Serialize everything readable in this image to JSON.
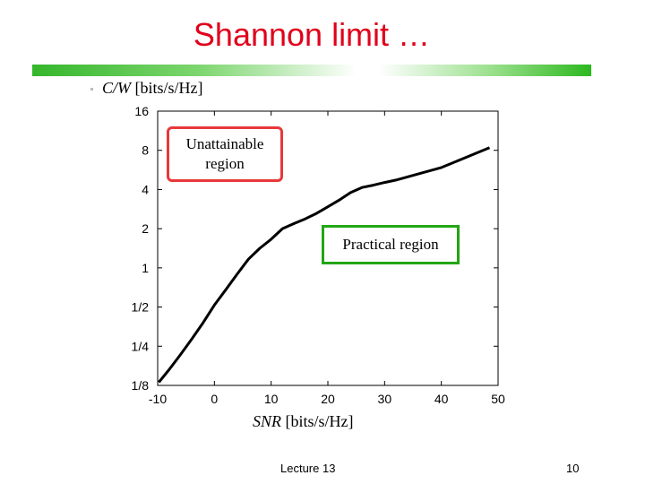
{
  "slide": {
    "title": "Shannon limit …",
    "footer": "Lecture 13",
    "page_number": "10"
  },
  "colors": {
    "title": "#e0001b",
    "unattainable_border": "#e8383a",
    "practical_border": "#22a614"
  },
  "chart_data": {
    "type": "line",
    "title": "",
    "ylabel_var": "C/W",
    "ylabel_unit": " [bits/s/Hz]",
    "xlabel_var": "SNR",
    "xlabel_unit": " [bits/s/Hz]",
    "x_ticks": [
      -10,
      0,
      10,
      20,
      30,
      40,
      50
    ],
    "x_tick_labels": [
      "-10",
      "0",
      "10",
      "20",
      "30",
      "40",
      "50"
    ],
    "y_ticks_log2": [
      -3,
      -2,
      -1,
      0,
      1,
      2,
      3,
      4
    ],
    "y_tick_labels": [
      "1/8",
      "1/4",
      "1/2",
      "1",
      "2",
      "4",
      "8",
      "16"
    ],
    "xlim": [
      -10,
      50
    ],
    "ylim_log2": [
      -3,
      4
    ],
    "series": [
      {
        "name": "Shannon limit",
        "x": [
          -9.8,
          -8,
          -6,
          -4,
          -2,
          0,
          2,
          4,
          6,
          8,
          10,
          12,
          14,
          16,
          18,
          20,
          22,
          24,
          26,
          28,
          30,
          32,
          34,
          36,
          38,
          40,
          42,
          44,
          46,
          48.5
        ],
        "y_log2": [
          -2.92,
          -2.6,
          -2.22,
          -1.82,
          -1.4,
          -0.95,
          -0.56,
          -0.16,
          0.22,
          0.5,
          0.73,
          1.0,
          1.13,
          1.25,
          1.39,
          1.56,
          1.73,
          1.92,
          2.05,
          2.11,
          2.18,
          2.24,
          2.32,
          2.4,
          2.48,
          2.56,
          2.68,
          2.8,
          2.92,
          3.07
        ]
      }
    ],
    "annotations": [
      {
        "lines": [
          "Unattainable",
          "region"
        ]
      },
      {
        "lines": [
          "Practical region"
        ]
      }
    ]
  }
}
